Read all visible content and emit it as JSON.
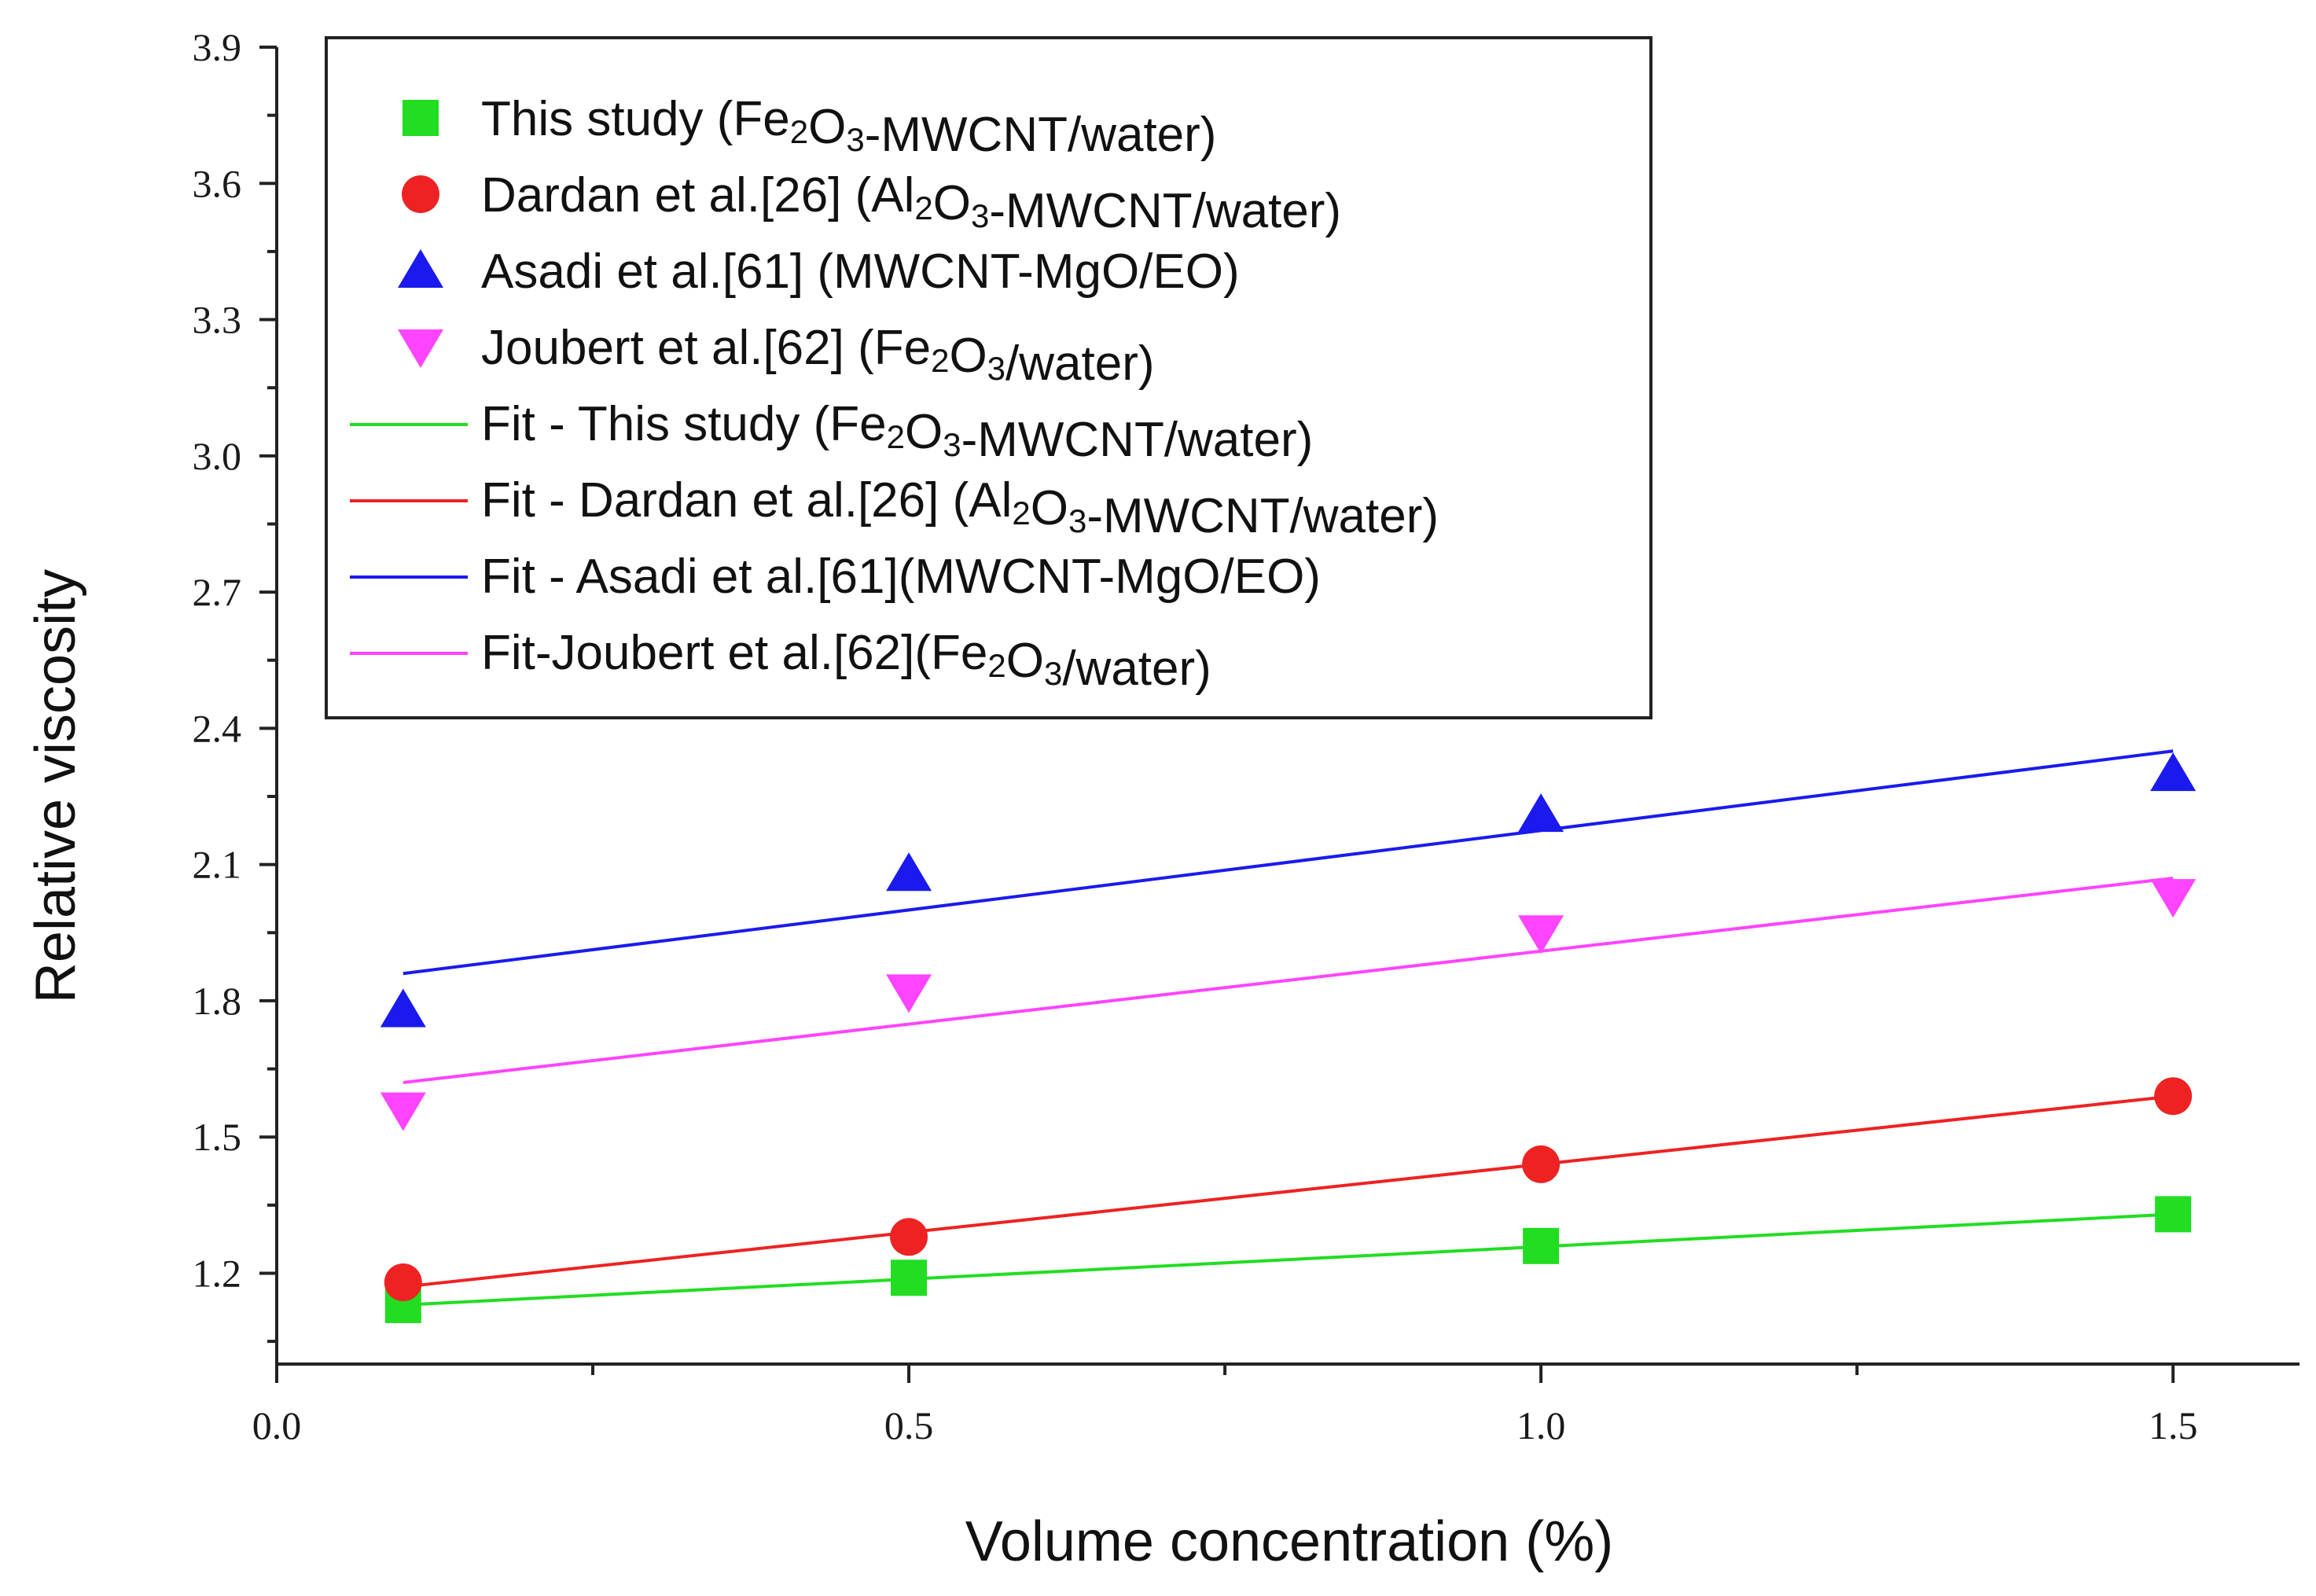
{
  "chart_data": {
    "type": "scatter",
    "title": "",
    "xlabel": "Volume concentration (%)",
    "ylabel": "Relative viscosity",
    "xlim": [
      0.0,
      1.6
    ],
    "ylim": [
      1.0,
      3.9
    ],
    "x_ticks": [
      "0.0",
      "0.5",
      "1.0",
      "1.5"
    ],
    "y_ticks": [
      "1.2",
      "1.5",
      "1.8",
      "2.1",
      "2.4",
      "2.7",
      "3.0",
      "3.3",
      "3.6",
      "3.9"
    ],
    "grid": false,
    "legend_position": "top-left",
    "series": [
      {
        "name": "This study (Fe2O3-MWCNT/water)",
        "legend_parts": [
          {
            "t": "This study (Fe"
          },
          {
            "t": "2",
            "sub": true
          },
          {
            "t": "O"
          },
          {
            "t": "3",
            "sub": true
          },
          {
            "t": "-MWCNT/water)"
          }
        ],
        "marker": "square",
        "color": "#22dd22",
        "x": [
          0.1,
          0.5,
          1.0,
          1.5
        ],
        "values": [
          1.13,
          1.19,
          1.26,
          1.33
        ]
      },
      {
        "name": "Dardan et al.[26] (Al2O3-MWCNT/water)",
        "legend_parts": [
          {
            "t": "Dardan et al.[26] (Al"
          },
          {
            "t": "2",
            "sub": true
          },
          {
            "t": "O"
          },
          {
            "t": "3",
            "sub": true
          },
          {
            "t": "-MWCNT/water)"
          }
        ],
        "marker": "circle",
        "color": "#ee2222",
        "x": [
          0.1,
          0.5,
          1.0,
          1.5
        ],
        "values": [
          1.18,
          1.28,
          1.44,
          1.59
        ]
      },
      {
        "name": "Asadi et al.[61] (MWCNT-MgO/EO)",
        "legend_parts": [
          {
            "t": "Asadi et al.[61] (MWCNT-MgO/EO)"
          }
        ],
        "marker": "triangle-up",
        "color": "#1a1aee",
        "x": [
          0.1,
          0.5,
          1.0,
          1.5
        ],
        "values": [
          1.78,
          2.08,
          2.21,
          2.3
        ]
      },
      {
        "name": "Joubert et al.[62] (Fe2O3/water)",
        "legend_parts": [
          {
            "t": "Joubert et al.[62] (Fe"
          },
          {
            "t": "2",
            "sub": true
          },
          {
            "t": "O"
          },
          {
            "t": "3",
            "sub": true
          },
          {
            "t": "/water)"
          }
        ],
        "marker": "triangle-down",
        "color": "#ff44ff",
        "x": [
          0.1,
          0.5,
          1.0,
          1.5
        ],
        "values": [
          1.56,
          1.82,
          1.95,
          2.03
        ]
      }
    ],
    "fits": [
      {
        "name": "Fit - This study (Fe2O3-MWCNT/water)",
        "legend_parts": [
          {
            "t": "Fit - This study (Fe"
          },
          {
            "t": "2",
            "sub": true
          },
          {
            "t": "O"
          },
          {
            "t": "3",
            "sub": true
          },
          {
            "t": "-MWCNT/water)"
          }
        ],
        "color": "#22dd22",
        "x": [
          0.1,
          1.5
        ],
        "values": [
          1.13,
          1.33
        ]
      },
      {
        "name": "Fit - Dardan et al.[26] (Al2O3-MWCNT/water)",
        "legend_parts": [
          {
            "t": "Fit - Dardan et al.[26] (Al"
          },
          {
            "t": "2",
            "sub": true
          },
          {
            "t": "O"
          },
          {
            "t": "3",
            "sub": true
          },
          {
            "t": "-MWCNT/water)"
          }
        ],
        "color": "#ee2222",
        "x": [
          0.1,
          1.5
        ],
        "values": [
          1.17,
          1.59
        ]
      },
      {
        "name": "Fit - Asadi et al.[61](MWCNT-MgO/EO)",
        "legend_parts": [
          {
            "t": "Fit - Asadi et al.[61](MWCNT-MgO/EO)"
          }
        ],
        "color": "#1a1aee",
        "x": [
          0.1,
          1.5
        ],
        "values": [
          1.86,
          2.35
        ]
      },
      {
        "name": "Fit-Joubert et al.[62](Fe2O3/water)",
        "legend_parts": [
          {
            "t": "Fit-Joubert et al.[62](Fe"
          },
          {
            "t": "2",
            "sub": true
          },
          {
            "t": "O"
          },
          {
            "t": "3",
            "sub": true
          },
          {
            "t": "/water)"
          }
        ],
        "color": "#ff44ff",
        "x": [
          0.1,
          1.5
        ],
        "values": [
          1.62,
          2.07
        ]
      }
    ]
  }
}
